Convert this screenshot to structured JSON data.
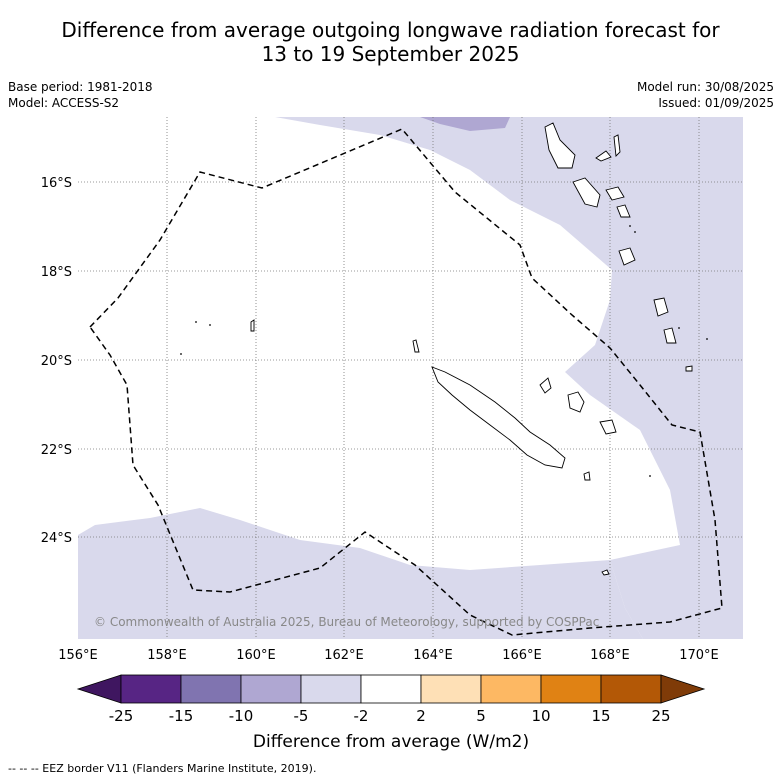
{
  "title_line1": "Difference from average outgoing longwave radiation forecast for",
  "title_line2": "13 to 19 September 2025",
  "meta": {
    "base_period": "Base period: 1981-2018",
    "model": "Model: ACCESS-S2",
    "model_run": "Model run: 30/08/2025",
    "issued": "Issued: 01/09/2025"
  },
  "map": {
    "lon_labels": [
      "156°E",
      "158°E",
      "160°E",
      "162°E",
      "164°E",
      "166°E",
      "168°E",
      "170°E"
    ],
    "lat_labels": [
      "16°S",
      "18°S",
      "20°S",
      "22°S",
      "24°S"
    ],
    "copyright": "© Commonwealth of Australia 2025, Bureau of Meteorology, supported by COSPPac"
  },
  "colorbar": {
    "labels": [
      "-25",
      "-15",
      "-10",
      "-5",
      "-2",
      "2",
      "5",
      "10",
      "15",
      "25"
    ],
    "colors": [
      "#3f1660",
      "#572584",
      "#8074b0",
      "#afa7d2",
      "#d9d9ec",
      "#ffffff",
      "#fee0b6",
      "#fdb863",
      "#e08214",
      "#b35806",
      "#7f3b08"
    ],
    "title": "Difference from average (W/m2)"
  },
  "footnote": "--  --  -- EEZ border V11 (Flanders Marine Institute, 2019)."
}
